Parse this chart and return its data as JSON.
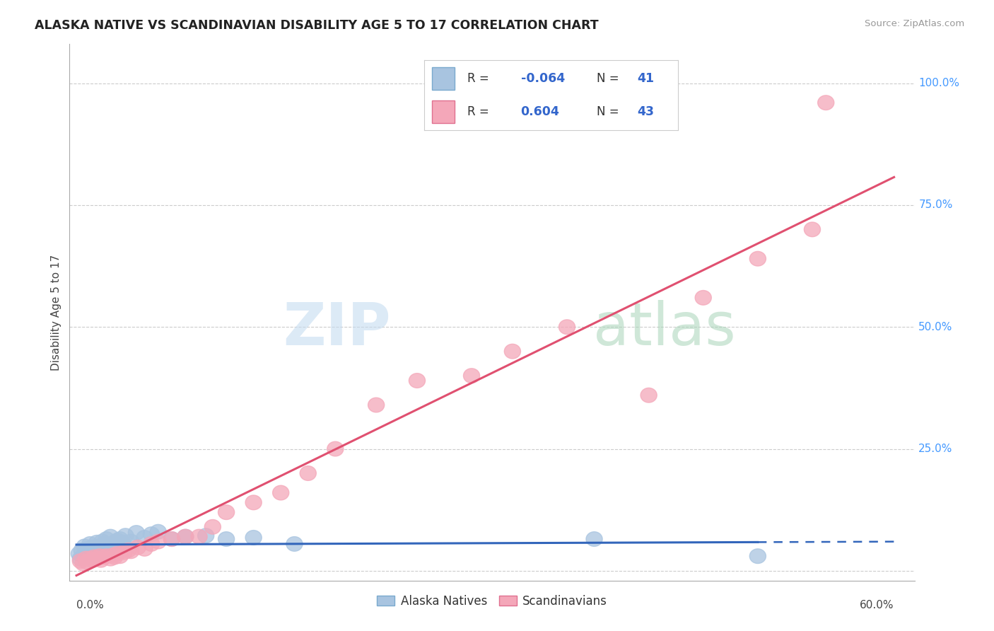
{
  "title": "ALASKA NATIVE VS SCANDINAVIAN DISABILITY AGE 5 TO 17 CORRELATION CHART",
  "source": "Source: ZipAtlas.com",
  "ylabel": "Disability Age 5 to 17",
  "x_min": 0.0,
  "x_max": 0.6,
  "y_min": -0.02,
  "y_max": 1.08,
  "legend_r_alaska": "-0.064",
  "legend_n_alaska": "41",
  "legend_r_scand": "0.604",
  "legend_n_scand": "43",
  "alaska_color": "#A8C4E0",
  "alaska_edge_color": "#7AAACE",
  "scand_color": "#F4A7B9",
  "scand_edge_color": "#E07090",
  "alaska_line_color": "#3366BB",
  "scand_line_color": "#E05070",
  "grid_color": "#CCCCCC",
  "title_color": "#222222",
  "source_color": "#999999",
  "tick_label_color": "#4499FF",
  "axis_color": "#AAAAAA",
  "watermark_zip_color": "#C5DCF0",
  "watermark_atlas_color": "#A8D4B8",
  "alaska_x": [
    0.002,
    0.003,
    0.004,
    0.005,
    0.006,
    0.007,
    0.008,
    0.009,
    0.01,
    0.011,
    0.012,
    0.013,
    0.015,
    0.016,
    0.017,
    0.018,
    0.019,
    0.02,
    0.021,
    0.022,
    0.024,
    0.025,
    0.027,
    0.028,
    0.03,
    0.032,
    0.034,
    0.036,
    0.04,
    0.044,
    0.05,
    0.055,
    0.06,
    0.07,
    0.08,
    0.095,
    0.11,
    0.13,
    0.16,
    0.38,
    0.5
  ],
  "alaska_y": [
    0.035,
    0.025,
    0.042,
    0.03,
    0.05,
    0.038,
    0.045,
    0.028,
    0.055,
    0.04,
    0.048,
    0.032,
    0.058,
    0.042,
    0.05,
    0.035,
    0.06,
    0.045,
    0.055,
    0.065,
    0.048,
    0.07,
    0.055,
    0.058,
    0.062,
    0.065,
    0.058,
    0.072,
    0.06,
    0.078,
    0.068,
    0.075,
    0.08,
    0.065,
    0.07,
    0.072,
    0.065,
    0.068,
    0.055,
    0.065,
    0.03
  ],
  "scand_x": [
    0.003,
    0.005,
    0.007,
    0.008,
    0.01,
    0.012,
    0.013,
    0.015,
    0.017,
    0.018,
    0.02,
    0.022,
    0.025,
    0.027,
    0.028,
    0.03,
    0.032,
    0.035,
    0.038,
    0.04,
    0.045,
    0.05,
    0.055,
    0.06,
    0.07,
    0.08,
    0.09,
    0.1,
    0.11,
    0.13,
    0.15,
    0.17,
    0.19,
    0.22,
    0.25,
    0.29,
    0.32,
    0.36,
    0.42,
    0.46,
    0.5,
    0.54,
    0.55
  ],
  "scand_y": [
    0.02,
    0.015,
    0.025,
    0.018,
    0.025,
    0.022,
    0.028,
    0.025,
    0.03,
    0.022,
    0.028,
    0.03,
    0.025,
    0.032,
    0.028,
    0.035,
    0.03,
    0.038,
    0.042,
    0.04,
    0.048,
    0.045,
    0.055,
    0.06,
    0.065,
    0.07,
    0.07,
    0.09,
    0.12,
    0.14,
    0.16,
    0.2,
    0.25,
    0.34,
    0.39,
    0.4,
    0.45,
    0.5,
    0.36,
    0.56,
    0.64,
    0.7,
    0.96
  ],
  "alaska_line_x0": 0.0,
  "alaska_line_x1": 0.5,
  "alaska_line_x_dash0": 0.5,
  "alaska_line_x_dash1": 0.6,
  "scand_line_x0": 0.0,
  "scand_line_x1": 0.6
}
